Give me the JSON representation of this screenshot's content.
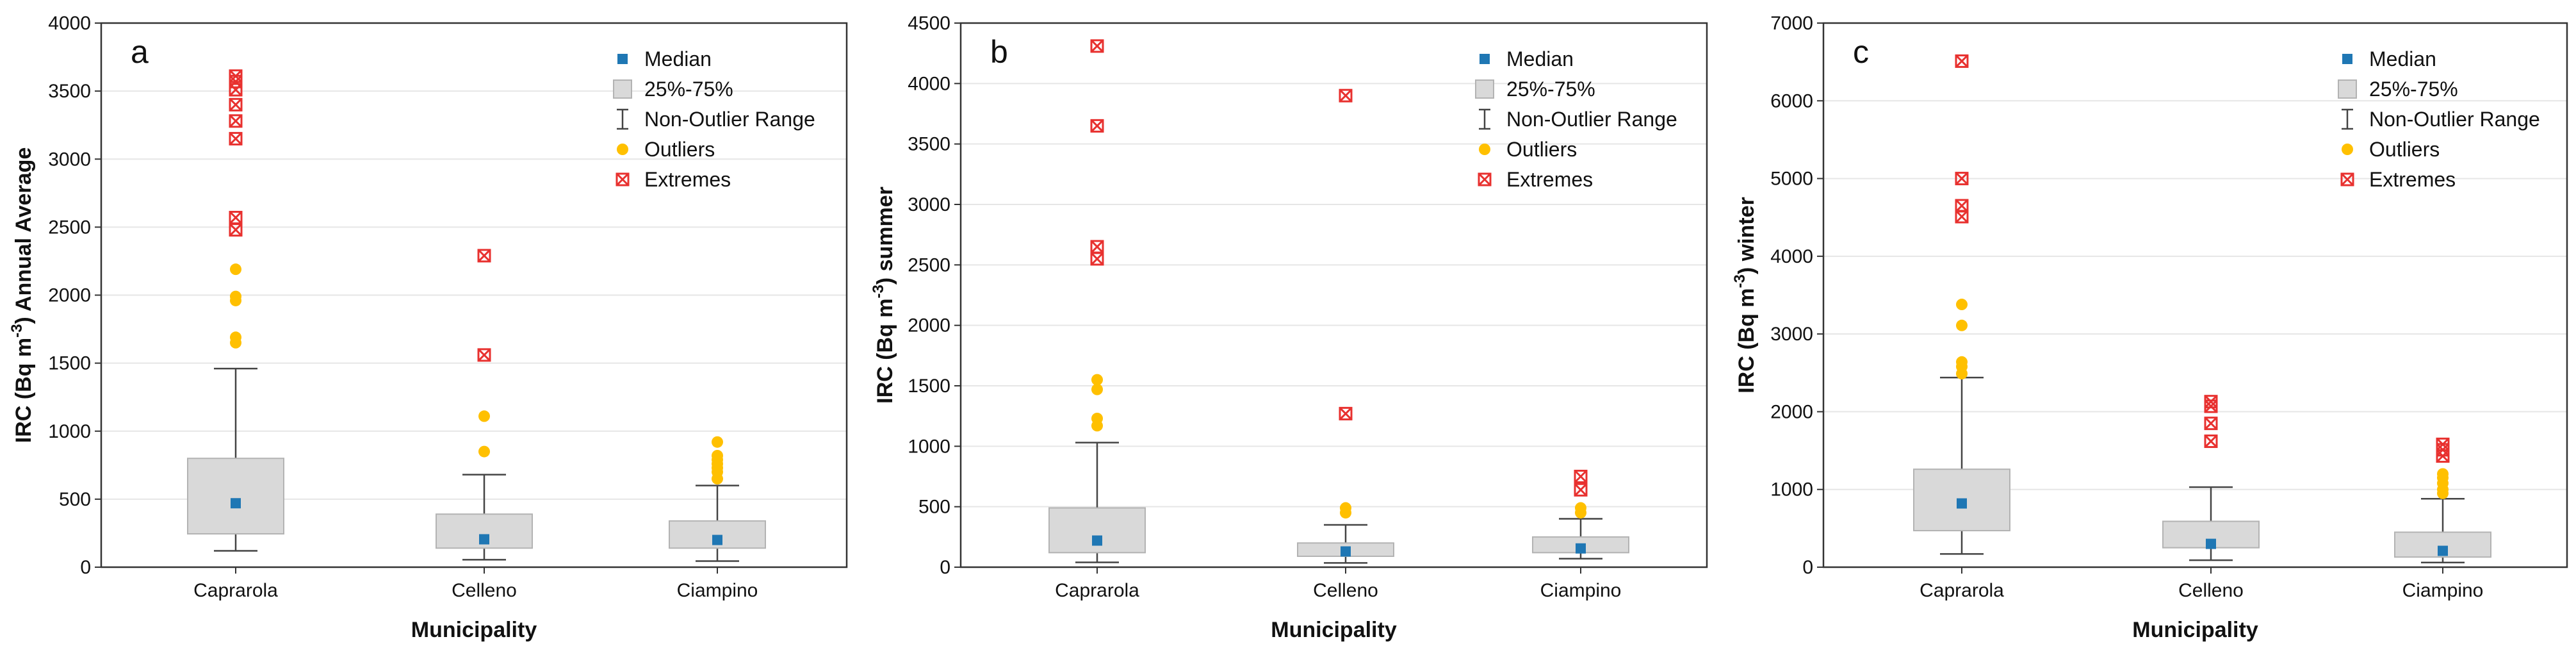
{
  "chart_data": [
    {
      "type": "box",
      "panel_label": "a",
      "xlabel": "Municipality",
      "ylabel_parts": [
        "IRC (Bq m",
        "-3",
        ") Annual Average"
      ],
      "ylim": [
        0,
        4000
      ],
      "yticks": [
        0,
        500,
        1000,
        1500,
        2000,
        2500,
        3000,
        3500,
        4000
      ],
      "categories": [
        "Caprarola",
        "Celleno",
        "Ciampino"
      ],
      "boxes": [
        {
          "name": "Caprarola",
          "median": 470,
          "q1": 245,
          "q3": 800,
          "whisker_low": 120,
          "whisker_high": 1460,
          "outliers": [
            1650,
            1690,
            1960,
            1990,
            2190
          ],
          "extremes": [
            2480,
            2570,
            3150,
            3280,
            3400,
            3510,
            3570,
            3610
          ]
        },
        {
          "name": "Celleno",
          "median": 205,
          "q1": 140,
          "q3": 390,
          "whisker_low": 55,
          "whisker_high": 680,
          "outliers": [
            850,
            1110
          ],
          "extremes": [
            1560,
            2290
          ]
        },
        {
          "name": "Ciampino",
          "median": 200,
          "q1": 140,
          "q3": 340,
          "whisker_low": 45,
          "whisker_high": 600,
          "outliers": [
            650,
            700,
            730,
            760,
            790,
            820,
            920
          ],
          "extremes": []
        }
      ]
    },
    {
      "type": "box",
      "panel_label": "b",
      "xlabel": "Municipality",
      "ylabel_parts": [
        "IRC (Bq m",
        "-3",
        ") summer"
      ],
      "ylim": [
        0,
        4500
      ],
      "yticks": [
        0,
        500,
        1000,
        1500,
        2000,
        2500,
        3000,
        3500,
        4000,
        4500
      ],
      "categories": [
        "Caprarola",
        "Celleno",
        "Ciampino"
      ],
      "boxes": [
        {
          "name": "Caprarola",
          "median": 220,
          "q1": 120,
          "q3": 490,
          "whisker_low": 40,
          "whisker_high": 1030,
          "outliers": [
            1170,
            1230,
            1470,
            1550
          ],
          "extremes": [
            2550,
            2650,
            3650,
            4310
          ]
        },
        {
          "name": "Celleno",
          "median": 130,
          "q1": 90,
          "q3": 200,
          "whisker_low": 35,
          "whisker_high": 350,
          "outliers": [
            450,
            490
          ],
          "extremes": [
            1270,
            3900
          ]
        },
        {
          "name": "Ciampino",
          "median": 155,
          "q1": 120,
          "q3": 250,
          "whisker_low": 70,
          "whisker_high": 400,
          "outliers": [
            450,
            490
          ],
          "extremes": [
            640,
            750
          ]
        }
      ]
    },
    {
      "type": "box",
      "panel_label": "c",
      "xlabel": "Municipality",
      "ylabel_parts": [
        "IRC (Bq m",
        "-3",
        ") winter"
      ],
      "ylim": [
        0,
        7000
      ],
      "yticks": [
        0,
        1000,
        2000,
        3000,
        4000,
        5000,
        6000,
        7000
      ],
      "categories": [
        "Caprarola",
        "Celleno",
        "Ciampino"
      ],
      "boxes": [
        {
          "name": "Caprarola",
          "median": 820,
          "q1": 470,
          "q3": 1260,
          "whisker_low": 170,
          "whisker_high": 2440,
          "outliers": [
            2490,
            2580,
            2640,
            3110,
            3380
          ],
          "extremes": [
            4510,
            4650,
            5000,
            6510
          ]
        },
        {
          "name": "Celleno",
          "median": 300,
          "q1": 250,
          "q3": 590,
          "whisker_low": 90,
          "whisker_high": 1030,
          "outliers": [],
          "extremes": [
            1620,
            1850,
            2070,
            2130
          ]
        },
        {
          "name": "Ciampino",
          "median": 210,
          "q1": 130,
          "q3": 450,
          "whisker_low": 60,
          "whisker_high": 880,
          "outliers": [
            950,
            1000,
            1080,
            1150,
            1200
          ],
          "extremes": [
            1430,
            1510,
            1580
          ]
        }
      ]
    }
  ],
  "legend": {
    "median": "Median",
    "box": "25%-75%",
    "range": "Non-Outlier Range",
    "outliers": "Outliers",
    "extremes": "Extremes"
  },
  "colors": {
    "median": "#1f77b4",
    "box_fill": "#d9d9d9",
    "box_stroke": "#b3b3b3",
    "whisker": "#444444",
    "outlier": "#ffc000",
    "extreme": "#e8312f",
    "grid": "#e6e6e6",
    "frame": "#333333"
  }
}
